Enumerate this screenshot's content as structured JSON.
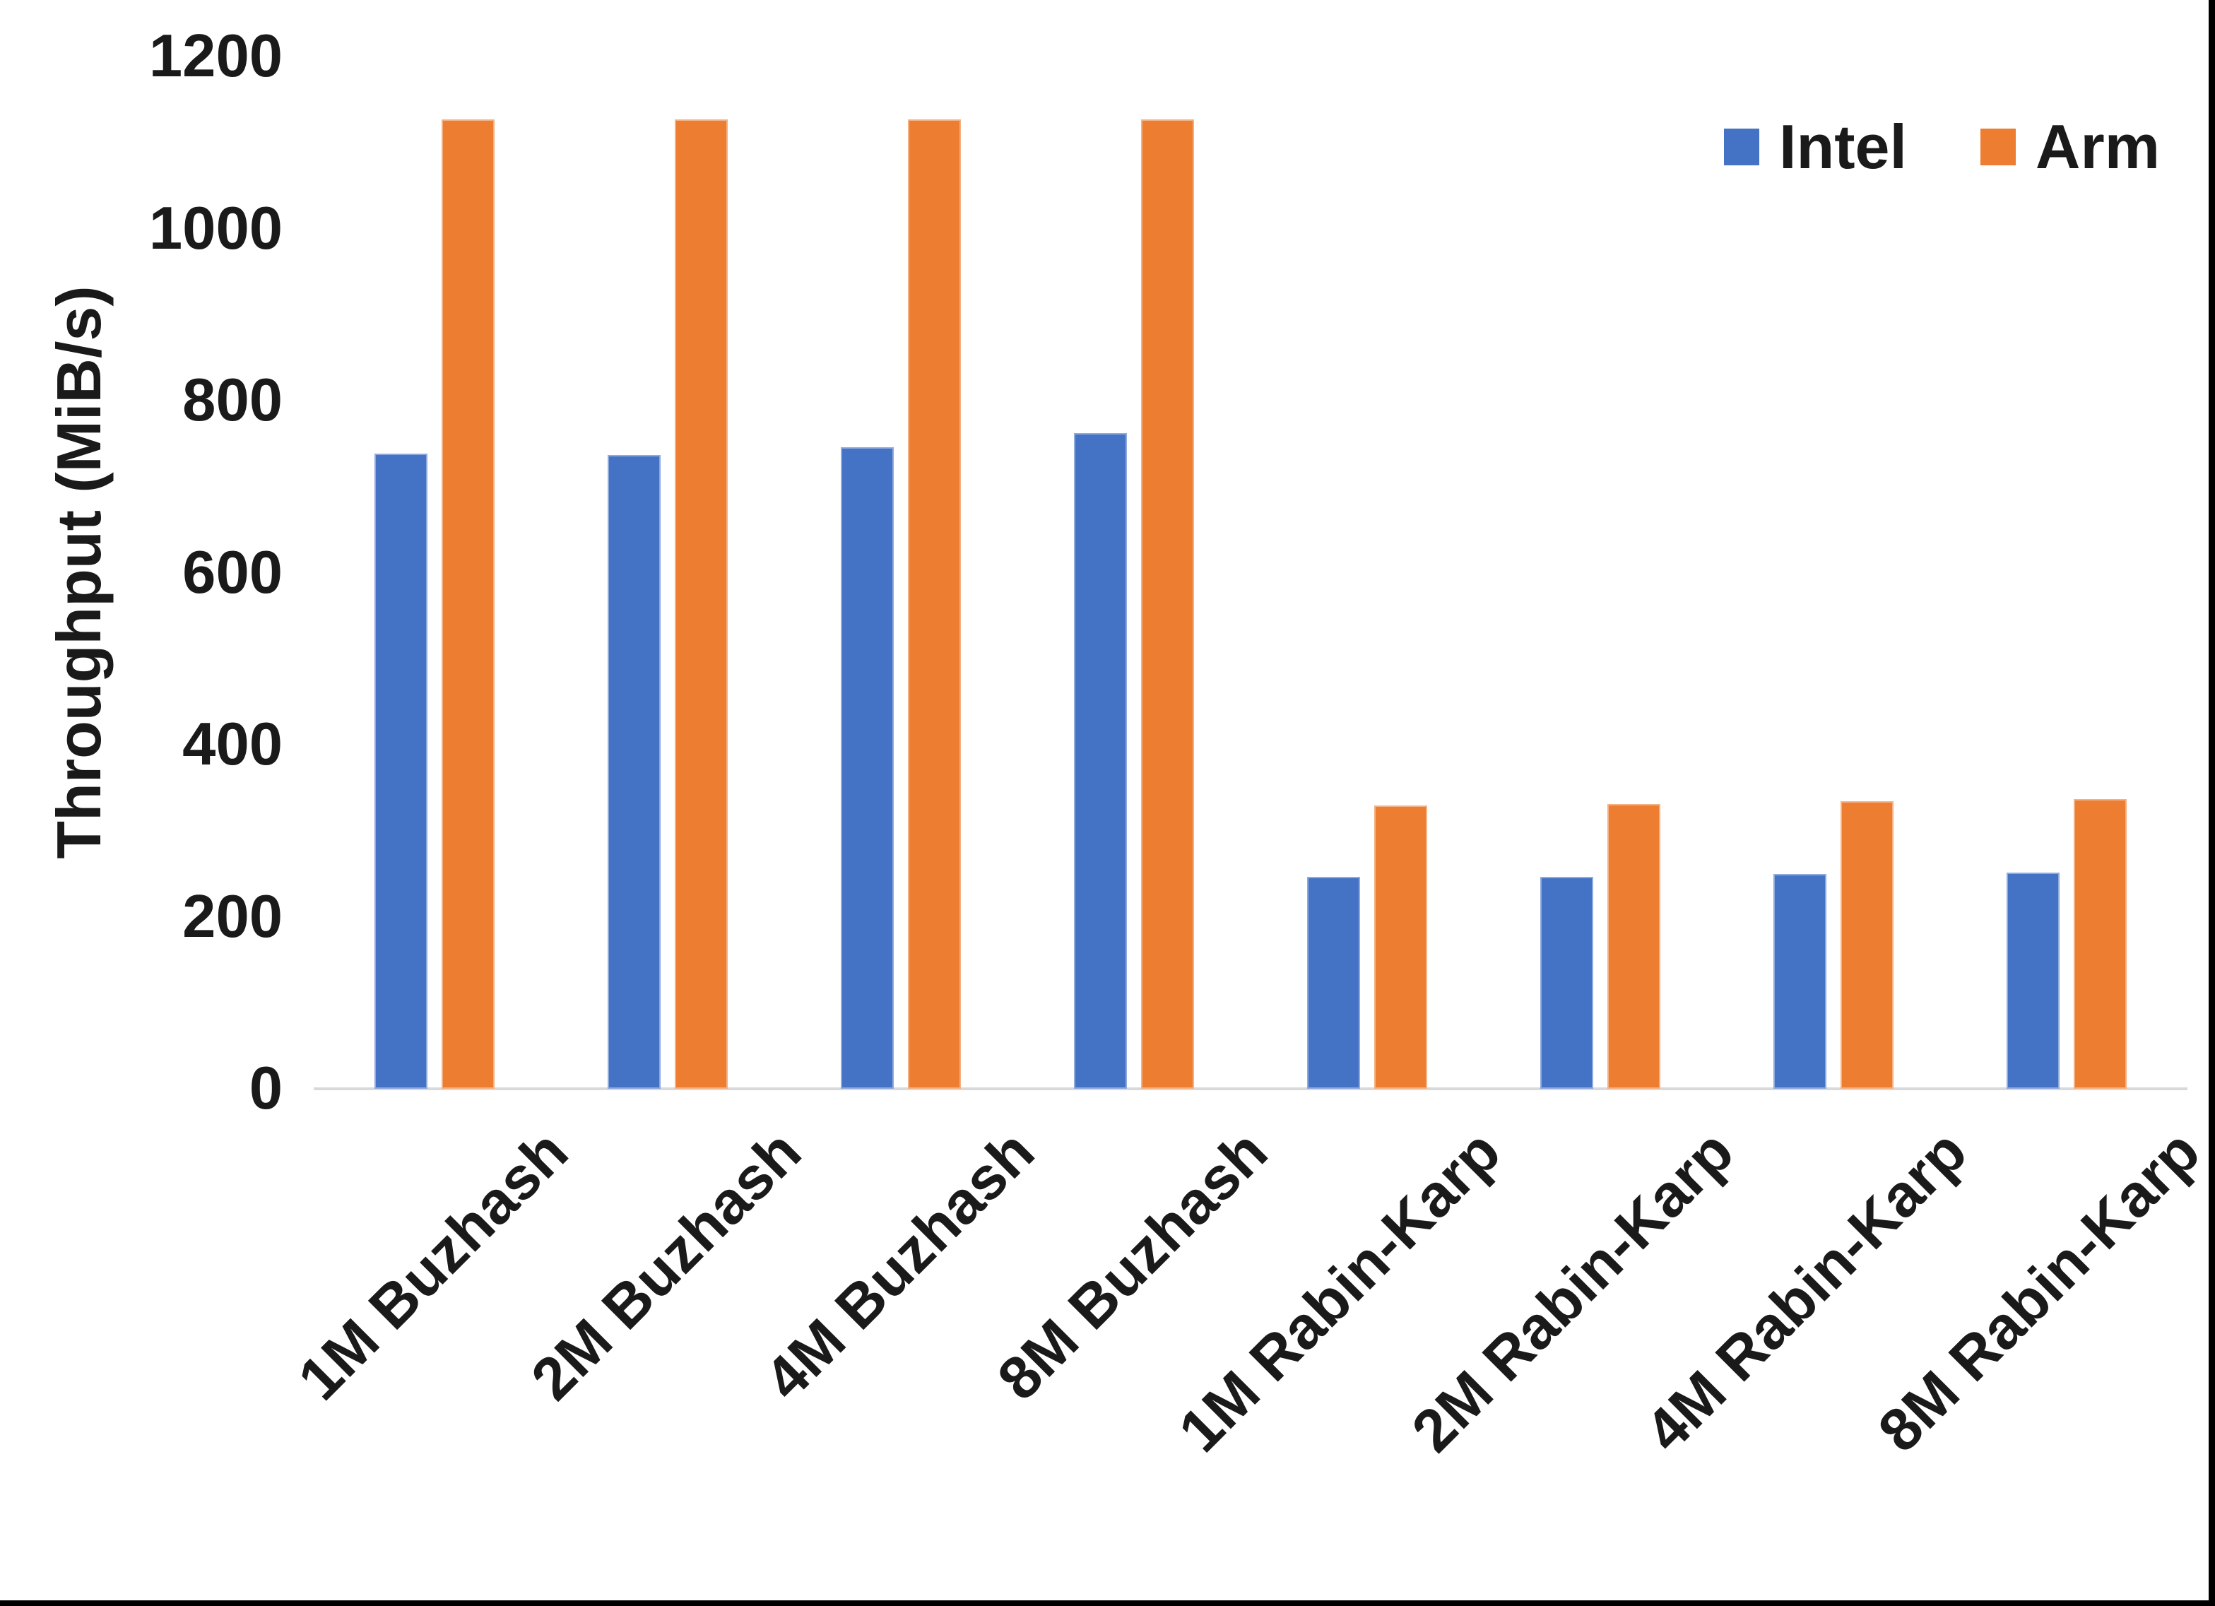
{
  "chart_data": {
    "type": "bar",
    "title": "",
    "xlabel": "",
    "ylabel": "Throughput (MiB/s)",
    "ylim": [
      0,
      1200
    ],
    "yticks": [
      0,
      200,
      400,
      600,
      800,
      1000,
      1200
    ],
    "ytick_labels": [
      "0",
      "200",
      "400",
      "600",
      "800",
      "1000",
      "1200"
    ],
    "categories": [
      "1M Buzhash",
      "2M Buzhash",
      "4M Buzhash",
      "8M Buzhash",
      "1M Rabin-Karp",
      "2M Rabin-Karp",
      "4M Rabin-Karp",
      "8M Rabin-Karp"
    ],
    "series": [
      {
        "name": "Intel",
        "color": "#4472C4",
        "edge_color": "#8FAADC",
        "values": [
          738,
          737,
          746,
          762,
          246,
          246,
          250,
          251
        ]
      },
      {
        "name": "Arm",
        "color": "#ED7D31",
        "edge_color": "#F4B183",
        "values": [
          1127,
          1127,
          1127,
          1127,
          329,
          331,
          334,
          337
        ]
      }
    ],
    "legend_position": "top-right",
    "grid": false,
    "axis_line_color": "#D9D9D9",
    "background_color": "#FFFFFF"
  }
}
